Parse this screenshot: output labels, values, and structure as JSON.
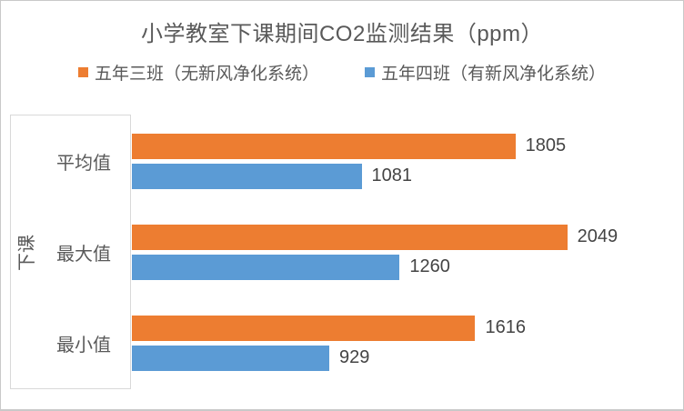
{
  "chart_data": {
    "type": "bar",
    "orientation": "horizontal",
    "title": "小学教室下课期间CO2监测结果（ppm）",
    "axis_group_label": "下课",
    "categories": [
      "平均值",
      "最大值",
      "最小值"
    ],
    "series": [
      {
        "name": "五年三班（无新风净化系统）",
        "color": "#ED7D31",
        "values": [
          1805,
          2049,
          1616
        ]
      },
      {
        "name": "五年四班（有新风净化系统）",
        "color": "#5B9BD5",
        "values": [
          1081,
          1260,
          929
        ]
      }
    ],
    "xlim": [
      0,
      2500
    ],
    "value_labels": true,
    "legend_position": "top",
    "grid": false
  }
}
